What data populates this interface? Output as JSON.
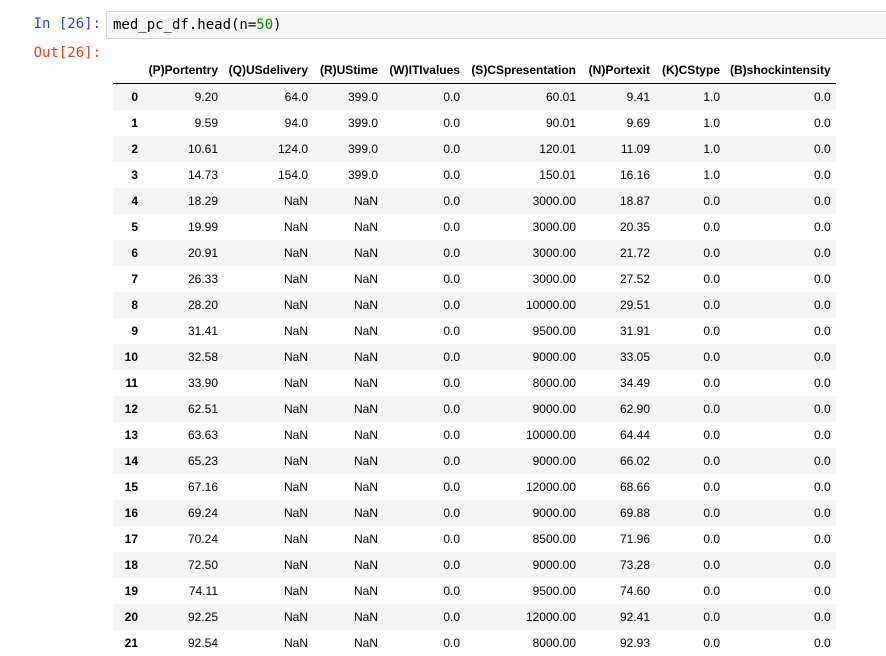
{
  "cell": {
    "in_prompt": "In [26]:",
    "out_prompt": "Out[26]:",
    "code_before": "med_pc_df.head(n=",
    "code_number": "50",
    "code_after": ")"
  },
  "table": {
    "columns": [
      "(P)Portentry",
      "(Q)USdelivery",
      "(R)UStime",
      "(W)ITIvalues",
      "(S)CSpresentation",
      "(N)Portexit",
      "(K)CStype",
      "(B)shockintensity"
    ],
    "rows": [
      [
        "0",
        "9.20",
        "64.0",
        "399.0",
        "0.0",
        "60.01",
        "9.41",
        "1.0",
        "0.0"
      ],
      [
        "1",
        "9.59",
        "94.0",
        "399.0",
        "0.0",
        "90.01",
        "9.69",
        "1.0",
        "0.0"
      ],
      [
        "2",
        "10.61",
        "124.0",
        "399.0",
        "0.0",
        "120.01",
        "11.09",
        "1.0",
        "0.0"
      ],
      [
        "3",
        "14.73",
        "154.0",
        "399.0",
        "0.0",
        "150.01",
        "16.16",
        "1.0",
        "0.0"
      ],
      [
        "4",
        "18.29",
        "NaN",
        "NaN",
        "0.0",
        "3000.00",
        "18.87",
        "0.0",
        "0.0"
      ],
      [
        "5",
        "19.99",
        "NaN",
        "NaN",
        "0.0",
        "3000.00",
        "20.35",
        "0.0",
        "0.0"
      ],
      [
        "6",
        "20.91",
        "NaN",
        "NaN",
        "0.0",
        "3000.00",
        "21.72",
        "0.0",
        "0.0"
      ],
      [
        "7",
        "26.33",
        "NaN",
        "NaN",
        "0.0",
        "3000.00",
        "27.52",
        "0.0",
        "0.0"
      ],
      [
        "8",
        "28.20",
        "NaN",
        "NaN",
        "0.0",
        "10000.00",
        "29.51",
        "0.0",
        "0.0"
      ],
      [
        "9",
        "31.41",
        "NaN",
        "NaN",
        "0.0",
        "9500.00",
        "31.91",
        "0.0",
        "0.0"
      ],
      [
        "10",
        "32.58",
        "NaN",
        "NaN",
        "0.0",
        "9000.00",
        "33.05",
        "0.0",
        "0.0"
      ],
      [
        "11",
        "33.90",
        "NaN",
        "NaN",
        "0.0",
        "8000.00",
        "34.49",
        "0.0",
        "0.0"
      ],
      [
        "12",
        "62.51",
        "NaN",
        "NaN",
        "0.0",
        "9000.00",
        "62.90",
        "0.0",
        "0.0"
      ],
      [
        "13",
        "63.63",
        "NaN",
        "NaN",
        "0.0",
        "10000.00",
        "64.44",
        "0.0",
        "0.0"
      ],
      [
        "14",
        "65.23",
        "NaN",
        "NaN",
        "0.0",
        "9000.00",
        "66.02",
        "0.0",
        "0.0"
      ],
      [
        "15",
        "67.16",
        "NaN",
        "NaN",
        "0.0",
        "12000.00",
        "68.66",
        "0.0",
        "0.0"
      ],
      [
        "16",
        "69.24",
        "NaN",
        "NaN",
        "0.0",
        "9000.00",
        "69.88",
        "0.0",
        "0.0"
      ],
      [
        "17",
        "70.24",
        "NaN",
        "NaN",
        "0.0",
        "8500.00",
        "71.96",
        "0.0",
        "0.0"
      ],
      [
        "18",
        "72.50",
        "NaN",
        "NaN",
        "0.0",
        "9000.00",
        "73.28",
        "0.0",
        "0.0"
      ],
      [
        "19",
        "74.11",
        "NaN",
        "NaN",
        "0.0",
        "9500.00",
        "74.60",
        "0.0",
        "0.0"
      ],
      [
        "20",
        "92.25",
        "NaN",
        "NaN",
        "0.0",
        "12000.00",
        "92.41",
        "0.0",
        "0.0"
      ],
      [
        "21",
        "92.54",
        "NaN",
        "NaN",
        "0.0",
        "8000.00",
        "92.93",
        "0.0",
        "0.0"
      ]
    ]
  }
}
